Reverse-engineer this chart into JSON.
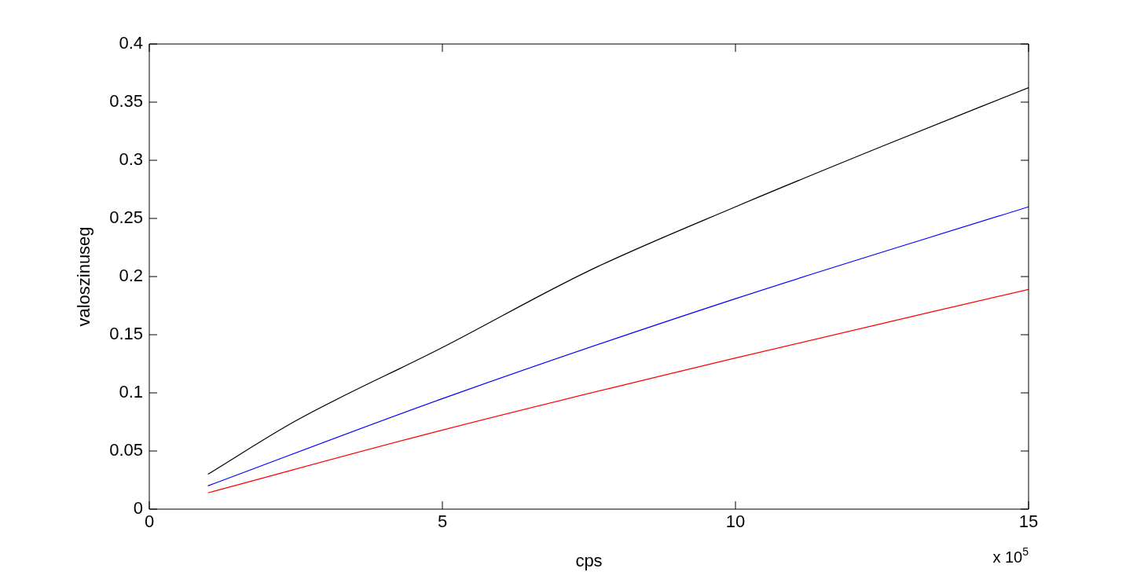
{
  "chart_data": {
    "type": "line",
    "xlabel": "cps",
    "ylabel": "valoszinuseg",
    "xlim": [
      0,
      15
    ],
    "xticks": [
      0,
      5,
      10,
      15
    ],
    "ylim": [
      0,
      0.4
    ],
    "yticks": [
      0,
      0.05,
      0.1,
      0.15,
      0.2,
      0.25,
      0.3,
      0.35,
      0.4
    ],
    "legend": false,
    "marker": "none",
    "line_style": "solid",
    "annotations": [
      "x 10$^{5}$"
    ],
    "series": [
      {
        "color": "#000000",
        "x": [
          1,
          2.5,
          5,
          7.5,
          10,
          12.5,
          15
        ],
        "values": [
          0.03,
          0.076,
          0.139,
          0.205,
          0.26,
          0.312,
          0.3625
        ]
      },
      {
        "color": "#0000ff",
        "x": [
          1,
          5,
          10,
          15
        ],
        "values": [
          0.02,
          0.095,
          0.181,
          0.26
        ]
      },
      {
        "color": "#ff0000",
        "x": [
          1,
          5,
          10,
          15
        ],
        "values": [
          0.014,
          0.068,
          0.13,
          0.189
        ]
      }
    ]
  }
}
